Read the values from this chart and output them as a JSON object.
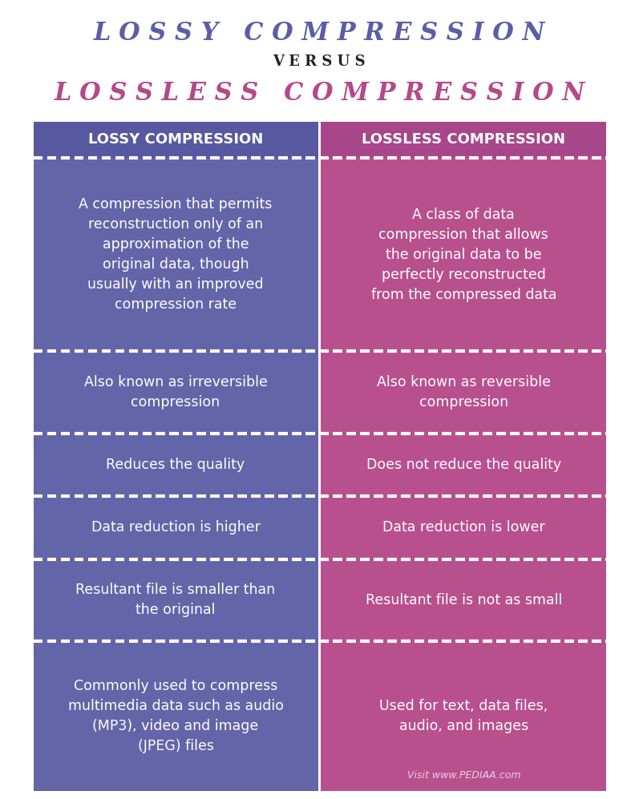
{
  "title1": "L O S S Y   C O M P R E S S I O N",
  "versus": "V E R S U S",
  "title2": "L O S S L E S S   C O M P R E S S I O N",
  "title1_color": "#5b5ea6",
  "versus_color": "#222222",
  "title2_color": "#b5488a",
  "left_header": "LOSSY COMPRESSION",
  "right_header": "LOSSLESS COMPRESSION",
  "left_bg": "#6464a8",
  "right_bg": "#b8508e",
  "header_bg_left": "#5858a0",
  "header_bg_right": "#a8468a",
  "text_color": "#ffffff",
  "divider_color": "#ffffff",
  "bg_color": "#ffffff",
  "left_items": [
    "A compression that permits\nreconstruction only of an\napproximation of the\noriginal data, though\nusually with an improved\ncompression rate",
    "Also known as irreversible\ncompression",
    "Reduces the quality",
    "Data reduction is higher",
    "Resultant file is smaller than\nthe original",
    "Commonly used to compress\nmultimedia data such as audio\n(MP3), video and image\n(JPEG) files"
  ],
  "right_items": [
    "A class of data\ncompression that allows\nthe original data to be\nperfectly reconstructed\nfrom the compressed data",
    "Also known as reversible\ncompression",
    "Does not reduce the quality",
    "Data reduction is lower",
    "Resultant file is not as small",
    "Used for text, data files,\naudio, and images"
  ],
  "watermark": "Visit www.PEDIAA.com"
}
